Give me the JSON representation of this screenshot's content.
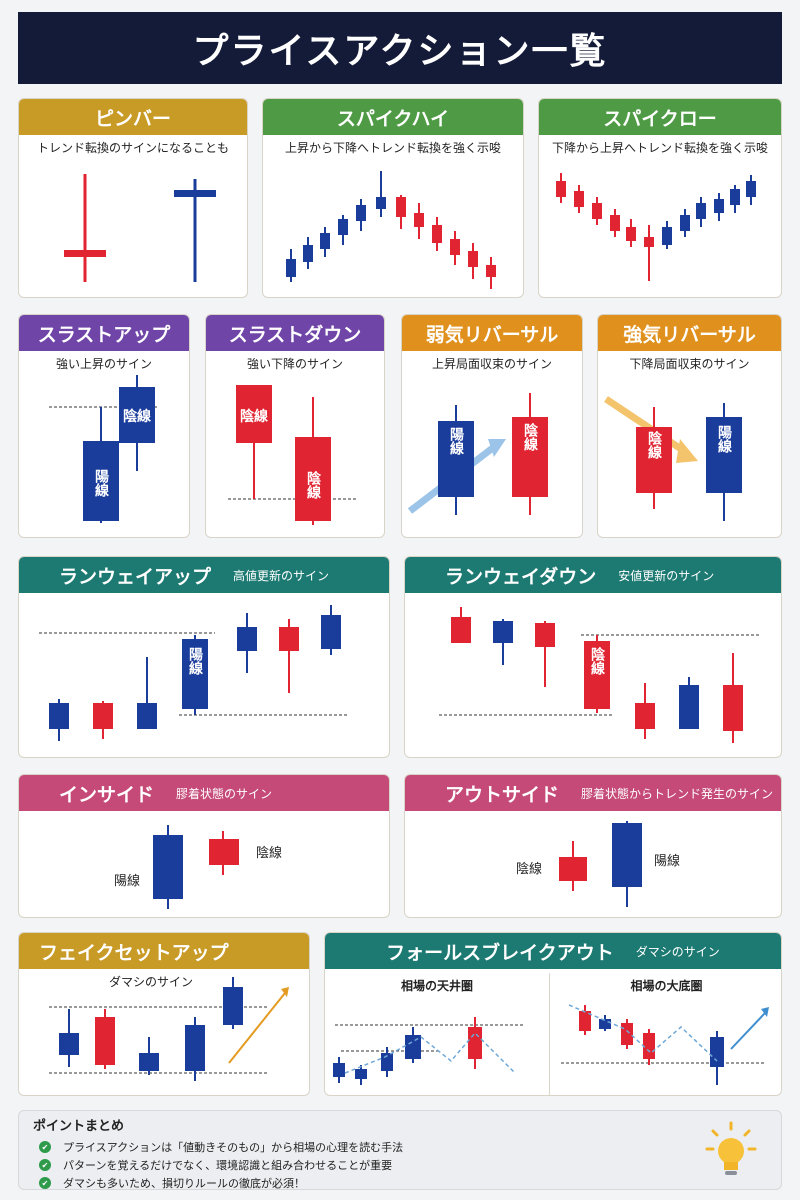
{
  "title": "プライスアクション一覧",
  "cards": {
    "pinbar": {
      "title": "ピンバー",
      "desc": "トレンド転換のサインになることも",
      "color": "#c89a26"
    },
    "spike_high": {
      "title": "スパイクハイ",
      "desc": "上昇から下降へトレンド転換を強く示唆",
      "color": "#4f9b45"
    },
    "spike_low": {
      "title": "スパイクロー",
      "desc": "下降から上昇へトレンド転換を強く示唆",
      "color": "#4f9b45"
    },
    "thrust_up": {
      "title": "スラストアップ",
      "desc": "強い上昇のサイン",
      "color": "#6f45a8",
      "label_bull": "陽線",
      "label_bear": "陰線"
    },
    "thrust_down": {
      "title": "スラストダウン",
      "desc": "強い下降のサイン",
      "color": "#6f45a8",
      "label_bear": "陰線",
      "label_bull": "陰線"
    },
    "weak_reversal": {
      "title": "弱気リバーサル",
      "desc": "上昇局面収束のサイン",
      "color": "#e0901c",
      "label_bull": "陽線",
      "label_bear": "陰線"
    },
    "strong_reversal": {
      "title": "強気リバーサル",
      "desc": "下降局面収束のサイン",
      "color": "#e0901c",
      "label_bear": "陰線",
      "label_bull": "陽線"
    },
    "runway_up": {
      "title": "ランウェイアップ",
      "sub": "高値更新のサイン",
      "color": "#1d7a72",
      "label": "陽線"
    },
    "runway_down": {
      "title": "ランウェイダウン",
      "sub": "安値更新のサイン",
      "color": "#1d7a72",
      "label": "陰線"
    },
    "inside": {
      "title": "インサイド",
      "sub": "膠着状態のサイン",
      "color": "#c54a78",
      "label_bull": "陽線",
      "label_bear": "陰線"
    },
    "outside": {
      "title": "アウトサイド",
      "sub": "膠着状態からトレンド発生のサイン",
      "color": "#c54a78",
      "label_bear": "陰線",
      "label_bull": "陽線"
    },
    "fake_setup": {
      "title": "フェイクセットアップ",
      "desc": "ダマシのサイン",
      "color": "#c89a26"
    },
    "false_break": {
      "title": "フォールスブレイクアウト",
      "sub": "ダマシのサイン",
      "color": "#1d7a72",
      "left_label": "相場の天井圏",
      "right_label": "相場の大底圏"
    }
  },
  "points": {
    "title": "ポイントまとめ",
    "items": [
      "プライスアクションは「値動きそのもの」から相場の心理を読む手法",
      "パターンを覚えるだけでなく、環境認識と組み合わせることが重要",
      "ダマシも多いため、損切りルールの徹底が必須！"
    ]
  },
  "colors": {
    "bull": "#1a3d9c",
    "bear": "#e02431"
  }
}
